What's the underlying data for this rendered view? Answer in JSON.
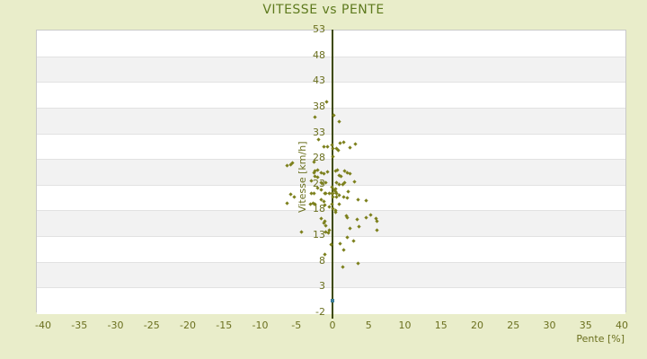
{
  "chart": {
    "title": "VITESSE vs PENTE",
    "colors": {
      "page_background": "#e9edca",
      "plot_background": "#ffffff",
      "band_alt": "#f2f2f2",
      "band_divider": "#e2e2e2",
      "plot_border": "#c9c9c9",
      "axis_line": "#3e4a00",
      "text": "#6b701f",
      "title_text": "#5e7a1e",
      "point": "#7c801c",
      "highlight_point": "#3a7b96"
    }
  },
  "chart_data": {
    "type": "scatter",
    "title": "VITESSE vs PENTE",
    "xlabel": "Pente [%]",
    "ylabel": "Vitesse [km/h]",
    "xlim": [
      -40.99,
      40.62
    ],
    "ylim": [
      -2,
      53
    ],
    "x_ticks": [
      -40,
      -35,
      -30,
      -25,
      -20,
      -15,
      -10,
      -5,
      0,
      5,
      10,
      15,
      20,
      25,
      30,
      35,
      40
    ],
    "y_ticks": [
      53,
      48,
      43,
      38,
      33,
      28,
      23,
      18,
      13,
      8,
      3,
      -2
    ],
    "grid": "alternating horizontal bands every 5 units, no vertical gridlines",
    "legend": "none",
    "series": [
      {
        "name": "vitesse-vs-pente",
        "marker": "diamond",
        "color": "#7c801c",
        "points": [
          [
            -0.8,
            38.9
          ],
          [
            -2.4,
            36.0
          ],
          [
            0.2,
            36.3
          ],
          [
            0.9,
            35.1
          ],
          [
            -1.9,
            31.6
          ],
          [
            1.1,
            30.9
          ],
          [
            1.5,
            31.1
          ],
          [
            3.2,
            30.7
          ],
          [
            2.4,
            30.0
          ],
          [
            -0.1,
            30.5
          ],
          [
            -1.2,
            30.2
          ],
          [
            -0.7,
            30.2
          ],
          [
            0.1,
            29.8
          ],
          [
            0.6,
            29.8
          ],
          [
            0.8,
            29.6
          ],
          [
            0.1,
            28.3
          ],
          [
            -2.5,
            27.2
          ],
          [
            -6.3,
            26.6
          ],
          [
            -5.8,
            26.8
          ],
          [
            -5.5,
            27.0
          ],
          [
            -2.6,
            25.1
          ],
          [
            -2.4,
            25.5
          ],
          [
            -2.0,
            25.6
          ],
          [
            -1.6,
            25.1
          ],
          [
            -1.2,
            24.9
          ],
          [
            -0.7,
            25.3
          ],
          [
            0.4,
            25.5
          ],
          [
            0.7,
            25.6
          ],
          [
            1.7,
            25.5
          ],
          [
            2.0,
            25.1
          ],
          [
            2.4,
            24.9
          ],
          [
            -2.4,
            24.4
          ],
          [
            -2.1,
            24.2
          ],
          [
            0.9,
            24.6
          ],
          [
            1.2,
            24.4
          ],
          [
            -2.9,
            23.5
          ],
          [
            -1.5,
            23.2
          ],
          [
            -1.4,
            23.0
          ],
          [
            -0.9,
            23.2
          ],
          [
            0.5,
            23.2
          ],
          [
            0.9,
            22.8
          ],
          [
            1.4,
            22.8
          ],
          [
            1.7,
            23.2
          ],
          [
            3.1,
            23.4
          ],
          [
            0.0,
            22.3
          ],
          [
            0.4,
            22.0
          ],
          [
            -2.1,
            22.1
          ],
          [
            -5.8,
            20.9
          ],
          [
            -5.3,
            20.5
          ],
          [
            -2.9,
            21.1
          ],
          [
            -2.5,
            21.2
          ],
          [
            -1.6,
            21.8
          ],
          [
            -1.1,
            21.2
          ],
          [
            -0.9,
            21.1
          ],
          [
            -0.4,
            21.2
          ],
          [
            -0.1,
            21.1
          ],
          [
            0.1,
            21.1
          ],
          [
            0.5,
            21.2
          ],
          [
            0.2,
            21.9
          ],
          [
            0.4,
            21.4
          ],
          [
            0.6,
            21.1
          ],
          [
            0.9,
            20.7
          ],
          [
            1.5,
            20.5
          ],
          [
            2.1,
            20.2
          ],
          [
            2.2,
            21.4
          ],
          [
            3.5,
            20.0
          ],
          [
            4.7,
            19.8
          ],
          [
            -1.5,
            20.0
          ],
          [
            -1.2,
            19.6
          ],
          [
            0.1,
            20.5
          ],
          [
            0.5,
            20.4
          ],
          [
            -6.3,
            19.3
          ],
          [
            -3.1,
            19.0
          ],
          [
            -2.7,
            19.3
          ],
          [
            -2.4,
            19.1
          ],
          [
            -1.1,
            18.9
          ],
          [
            -0.4,
            18.6
          ],
          [
            0.9,
            19.1
          ],
          [
            0.0,
            19.1
          ],
          [
            0.1,
            18.1
          ],
          [
            0.4,
            17.9
          ],
          [
            0.4,
            17.5
          ],
          [
            1.9,
            16.7
          ],
          [
            2.0,
            16.5
          ],
          [
            3.4,
            16.0
          ],
          [
            4.6,
            16.4
          ],
          [
            5.3,
            17.0
          ],
          [
            6.0,
            16.2
          ],
          [
            -1.6,
            16.3
          ],
          [
            -1.0,
            15.8
          ],
          [
            6.1,
            15.8
          ],
          [
            6.1,
            14.0
          ],
          [
            3.7,
            14.6
          ],
          [
            2.4,
            14.4
          ],
          [
            -1.2,
            15.3
          ],
          [
            -0.9,
            14.8
          ],
          [
            -4.3,
            13.7
          ],
          [
            -0.9,
            13.7
          ],
          [
            -0.6,
            13.4
          ],
          [
            -0.4,
            13.9
          ],
          [
            2.0,
            12.6
          ],
          [
            2.9,
            11.8
          ],
          [
            1.0,
            11.4
          ],
          [
            -0.2,
            11.2
          ],
          [
            1.6,
            10.2
          ],
          [
            -1.1,
            9.3
          ],
          [
            1.4,
            6.8
          ],
          [
            3.6,
            7.6
          ]
        ]
      },
      {
        "name": "highlight-point",
        "marker": "square",
        "color": "#3a7b96",
        "points": [
          [
            0.0,
            0.3
          ]
        ]
      }
    ]
  }
}
